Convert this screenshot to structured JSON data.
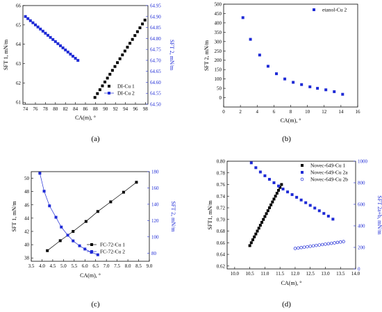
{
  "colors": {
    "black": "#000000",
    "blue": "#1f2bd6"
  },
  "chart_data": [
    {
      "id": "a",
      "type": "scatter",
      "panel_label": "(a)",
      "xlabel": "CA(m), °",
      "ylabel": "SFT 1, mN/m",
      "y2label": "SFT 2, mN/m",
      "xlim": [
        73.5,
        98.5
      ],
      "ylim": [
        60.9,
        66
      ],
      "y2lim": [
        64.5,
        64.95
      ],
      "xticks": [
        74,
        76,
        78,
        80,
        82,
        84,
        86,
        88,
        90,
        92,
        94,
        96,
        98
      ],
      "yticks": [
        61,
        62,
        63,
        64,
        65,
        66
      ],
      "y2ticks": [
        64.5,
        64.55,
        64.6,
        64.65,
        64.7,
        64.75,
        64.8,
        64.85,
        64.9,
        64.95
      ],
      "y2tick_labels": [
        "64.50",
        "64.55",
        "64.60",
        "64.65",
        "64.70",
        "64.75",
        "64.80",
        "64.85",
        "64.90",
        "64.95"
      ],
      "legend_position": "bottom-left",
      "series": [
        {
          "name": "DI-Cu 1",
          "axis": "left",
          "marker": "square-filled",
          "color": "#000000",
          "line": false,
          "x": [
            87.9,
            88.4,
            88.9,
            89.4,
            89.9,
            90.4,
            90.9,
            91.4,
            91.9,
            92.4,
            92.9,
            93.4,
            93.9,
            94.4,
            94.9,
            95.4,
            95.9,
            96.4,
            96.9,
            97.4,
            97.9
          ],
          "y": [
            61.25,
            61.45,
            61.65,
            61.85,
            62.05,
            62.25,
            62.45,
            62.65,
            62.85,
            63.05,
            63.25,
            63.45,
            63.65,
            63.85,
            64.05,
            64.25,
            64.45,
            64.65,
            64.85,
            65.05,
            65.25
          ]
        },
        {
          "name": "DI-Cu 2",
          "axis": "right",
          "marker": "square-filled",
          "color": "#1f2bd6",
          "line": true,
          "x": [
            74.0,
            74.5,
            75.0,
            75.5,
            76.0,
            76.5,
            77.0,
            77.5,
            78.0,
            78.5,
            79.0,
            79.5,
            80.0,
            80.5,
            81.0,
            81.5,
            82.0,
            82.5,
            83.0,
            83.5,
            84.0,
            84.5
          ],
          "y": [
            64.9,
            64.8905,
            64.881,
            64.8714,
            64.8619,
            64.8524,
            64.8429,
            64.8333,
            64.8238,
            64.8143,
            64.8048,
            64.7952,
            64.7857,
            64.7762,
            64.7667,
            64.7571,
            64.7476,
            64.7381,
            64.7286,
            64.719,
            64.7095,
            64.7
          ]
        }
      ]
    },
    {
      "id": "b",
      "type": "scatter",
      "panel_label": "(b)",
      "xlabel": "CA(m), °",
      "ylabel": "SFT 2, mN/m",
      "xlim": [
        0,
        16
      ],
      "ylim": [
        -50,
        500
      ],
      "xticks": [
        0,
        2,
        4,
        6,
        8,
        10,
        12,
        14,
        16
      ],
      "yticks": [
        0,
        50,
        100,
        150,
        200,
        250,
        300,
        350,
        400,
        450,
        500
      ],
      "legend_position": "top-right",
      "series": [
        {
          "name": "etanol-Cu 2",
          "axis": "left",
          "marker": "square-filled",
          "color": "#1f2bd6",
          "line": false,
          "x": [
            2.3,
            3.2,
            4.3,
            5.3,
            6.3,
            7.3,
            8.3,
            9.3,
            10.3,
            11.2,
            12.2,
            13.2,
            14.2
          ],
          "y": [
            428,
            312,
            228,
            168,
            128,
            100,
            82,
            70,
            58,
            50,
            42,
            32,
            18
          ]
        }
      ]
    },
    {
      "id": "c",
      "type": "line",
      "panel_label": "(c)",
      "xlabel": "CA(m), °",
      "ylabel": "SFT 1, mN/m",
      "y2label": "SFT 2, mN/m",
      "xlim": [
        3.5,
        9.0
      ],
      "ylim": [
        37.5,
        51
      ],
      "y2lim": [
        70,
        180
      ],
      "xticks": [
        3.5,
        4.0,
        4.5,
        5.0,
        5.5,
        6.0,
        6.5,
        7.0,
        7.5,
        8.0,
        8.5,
        9.0
      ],
      "xtick_labels": [
        "3.5",
        "4.0",
        "4.5",
        "5.0",
        "5.5",
        "6.0",
        "6.5",
        "7.0",
        "7.5",
        "8.0",
        "8.5",
        "9.0"
      ],
      "yticks": [
        38,
        40,
        42,
        44,
        46,
        48,
        50
      ],
      "y2ticks": [
        80,
        100,
        120,
        140,
        160,
        180
      ],
      "legend_position": "bottom-right",
      "series": [
        {
          "name": "FC-72-Cu 1",
          "axis": "left",
          "marker": "square-filled",
          "color": "#000000",
          "line": true,
          "x": [
            4.25,
            4.85,
            5.45,
            6.05,
            6.6,
            7.2,
            7.8,
            8.4
          ],
          "y": [
            39.1,
            40.6,
            42.0,
            43.5,
            45.0,
            46.45,
            47.9,
            49.4
          ]
        },
        {
          "name": "FC-72-Cu 2",
          "axis": "right",
          "marker": "square-filled",
          "color": "#1f2bd6",
          "line": true,
          "x": [
            3.9,
            4.1,
            4.35,
            4.65,
            4.9,
            5.2,
            5.45,
            5.75,
            6.0,
            6.3,
            6.6
          ],
          "y": [
            178,
            156,
            138,
            124,
            112,
            102,
            95,
            89,
            85,
            81,
            78
          ]
        }
      ]
    },
    {
      "id": "d",
      "type": "scatter",
      "panel_label": "(d)",
      "xlabel": "CA(m), °",
      "ylabel": "SFT1, mN/m",
      "y2label": "SFT 2a+b, mN/m",
      "xlim": [
        9.75,
        14
      ],
      "ylim": [
        0.615,
        0.8
      ],
      "y2lim": [
        0,
        1000
      ],
      "xticks": [
        10.0,
        10.5,
        11.0,
        11.5,
        12.0,
        12.5,
        13.0,
        13.5,
        14.0
      ],
      "xtick_labels": [
        "10.0",
        "10.5",
        "11.0",
        "11.5",
        "12.0",
        "12.5",
        "13.0",
        "13.5",
        "14.0"
      ],
      "yticks": [
        0.62,
        0.64,
        0.66,
        0.68,
        0.7,
        0.72,
        0.74,
        0.76,
        0.78,
        0.8
      ],
      "ytick_labels": [
        "0.62",
        "0.64",
        "0.66",
        "0.68",
        "0.70",
        "0.72",
        "0.74",
        "0.76",
        "0.78",
        "0.80"
      ],
      "y2ticks": [
        0,
        200,
        400,
        600,
        800,
        1000
      ],
      "legend_position": "top-right",
      "series": [
        {
          "name": "Novec-649-Cu 1",
          "axis": "left",
          "marker": "square-filled",
          "color": "#000000",
          "line": false,
          "x": [
            10.5,
            10.55,
            10.6,
            10.65,
            10.7,
            10.75,
            10.8,
            10.85,
            10.9,
            10.95,
            11.0,
            11.05,
            11.1,
            11.15,
            11.2,
            11.25,
            11.3,
            11.35,
            11.4,
            11.45,
            11.5,
            11.55
          ],
          "y": [
            0.655,
            0.66,
            0.665,
            0.67,
            0.675,
            0.68,
            0.685,
            0.69,
            0.695,
            0.7,
            0.705,
            0.71,
            0.715,
            0.72,
            0.725,
            0.73,
            0.735,
            0.74,
            0.745,
            0.75,
            0.755,
            0.76
          ]
        },
        {
          "name": "Novec-649-Cu 2a",
          "axis": "right",
          "marker": "square-filled",
          "color": "#1f2bd6",
          "line": false,
          "x": [
            10.55,
            10.7,
            10.85,
            11.0,
            11.15,
            11.3,
            11.45,
            11.6,
            11.75,
            11.9,
            12.05,
            12.2,
            12.35,
            12.5,
            12.65,
            12.8,
            12.95,
            13.1,
            13.25
          ],
          "y": [
            985,
            940,
            900,
            865,
            832,
            800,
            770,
            742,
            715,
            690,
            665,
            640,
            615,
            590,
            565,
            540,
            515,
            490,
            462
          ]
        },
        {
          "name": "Novec-649-Cu 2b",
          "axis": "right",
          "marker": "circle-open",
          "color": "#1f2bd6",
          "line": false,
          "x": [
            12.0,
            12.1,
            12.2,
            12.3,
            12.4,
            12.5,
            12.6,
            12.7,
            12.8,
            12.9,
            13.0,
            13.1,
            13.2,
            13.3,
            13.4,
            13.5,
            13.6
          ],
          "y": [
            190,
            194,
            198,
            202,
            206,
            210,
            214,
            218,
            222,
            226,
            230,
            234,
            238,
            242,
            246,
            250,
            254
          ]
        }
      ]
    }
  ]
}
